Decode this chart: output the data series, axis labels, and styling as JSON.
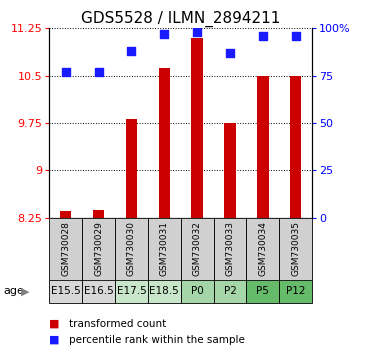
{
  "title": "GDS5528 / ILMN_2894211",
  "samples": [
    "GSM730028",
    "GSM730029",
    "GSM730030",
    "GSM730031",
    "GSM730032",
    "GSM730033",
    "GSM730034",
    "GSM730035"
  ],
  "ages": [
    "E15.5",
    "E16.5",
    "E17.5",
    "E18.5",
    "P0",
    "P2",
    "P5",
    "P12"
  ],
  "age_colors": [
    "#d8d8d8",
    "#d8d8d8",
    "#c8e6c9",
    "#c8e6c9",
    "#a5d6a7",
    "#a5d6a7",
    "#66bb6a",
    "#66bb6a"
  ],
  "sample_bg_color": "#d0d0d0",
  "transformed_counts": [
    8.35,
    8.38,
    9.82,
    10.62,
    11.1,
    9.75,
    10.5,
    10.5
  ],
  "percentile_ranks": [
    77,
    77,
    88,
    97,
    98,
    87,
    96,
    96
  ],
  "ylim_left": [
    8.25,
    11.25
  ],
  "ylim_right": [
    0,
    100
  ],
  "yticks_left": [
    8.25,
    9.0,
    9.75,
    10.5,
    11.25
  ],
  "ytick_labels_left": [
    "8.25",
    "9",
    "9.75",
    "10.5",
    "11.25"
  ],
  "yticks_right": [
    0,
    25,
    50,
    75,
    100
  ],
  "ytick_labels_right": [
    "0",
    "25",
    "50",
    "75",
    "100%"
  ],
  "bar_color": "#cc0000",
  "dot_color": "#1a1aff",
  "bar_width": 0.35,
  "dot_size": 35,
  "legend_red_label": "transformed count",
  "legend_blue_label": "percentile rank within the sample",
  "title_fontsize": 11,
  "tick_fontsize": 8,
  "sample_fontsize": 6.5,
  "age_fontsize": 7.5,
  "legend_fontsize": 7.5
}
